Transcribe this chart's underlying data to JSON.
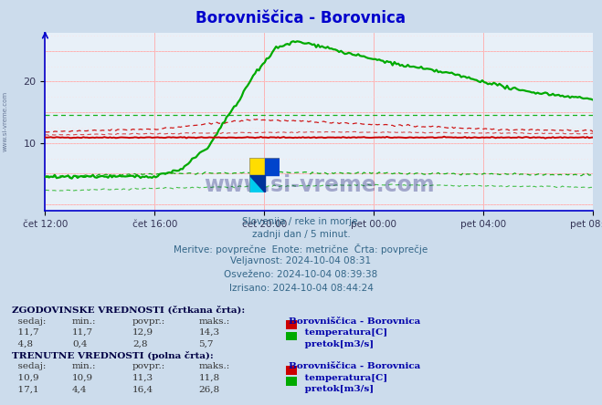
{
  "title": "Borovniščica - Borovnica",
  "title_color": "#0000cc",
  "bg_color": "#ccdcec",
  "plot_bg_color": "#e8f0f8",
  "grid_major_color": "#ff9999",
  "grid_minor_color": "#ffcccc",
  "x_labels": [
    "čet 12:00",
    "čet 16:00",
    "čet 20:00",
    "pet 00:00",
    "pet 04:00",
    "pet 08:00"
  ],
  "x_positions": [
    0,
    48,
    96,
    144,
    192,
    240
  ],
  "y_ticks": [
    10,
    20
  ],
  "ylim": [
    -1,
    28
  ],
  "xlim": [
    0,
    240
  ],
  "n_points": 288,
  "temp_solid_color": "#cc0000",
  "temp_dashed_color": "#cc0000",
  "flow_solid_color": "#00aa00",
  "flow_dashed_color": "#00aa00",
  "axis_color": "#0000cc",
  "tick_color": "#333355",
  "info_color": "#336688",
  "info_lines": [
    "Slovenija / reke in morje.",
    "zadnji dan / 5 minut.",
    "Meritve: povprečne  Enote: metrične  Črta: povprečje",
    "Veljavnost: 2024-10-04 08:31",
    "Osveženo: 2024-10-04 08:39:38",
    "Izrisano: 2024-10-04 08:44:24"
  ],
  "watermark_text": "www.si-vreme.com",
  "watermark_color": "#000066",
  "side_text": "www.si-vreme.com"
}
